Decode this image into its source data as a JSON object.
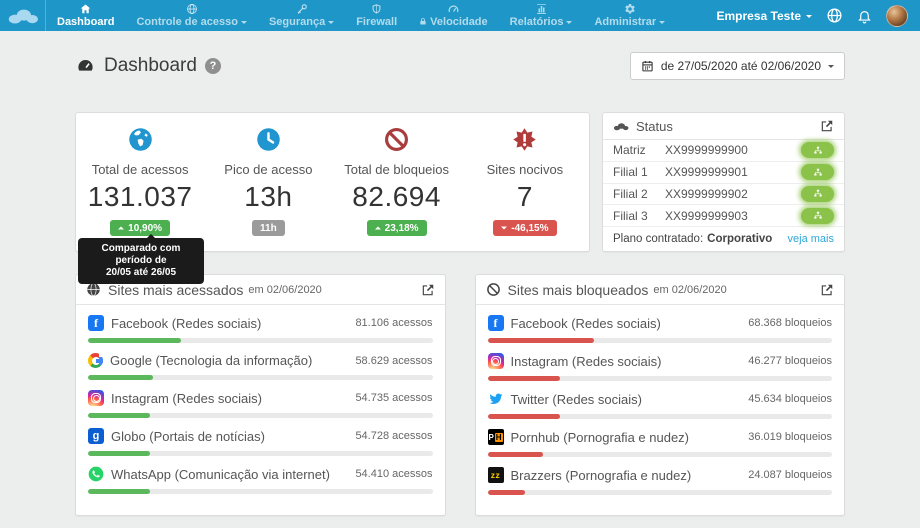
{
  "navbar": {
    "background": "#1e96c8",
    "items": [
      {
        "label": "Dashboard",
        "icon": "home-icon",
        "active": true,
        "caret": false
      },
      {
        "label": "Controle de acesso",
        "icon": "globe-icon",
        "active": false,
        "caret": true
      },
      {
        "label": "Segurança",
        "icon": "key-icon",
        "active": false,
        "caret": true
      },
      {
        "label": "Firewall",
        "icon": "shield-icon",
        "active": false,
        "caret": false
      },
      {
        "label": "Velocidade",
        "icon": "gauge-icon",
        "active": false,
        "caret": false,
        "locked": true
      },
      {
        "label": "Relatórios",
        "icon": "bar-chart-icon",
        "active": false,
        "caret": true
      },
      {
        "label": "Administrar",
        "icon": "gear-icon",
        "active": false,
        "caret": true
      }
    ],
    "company_menu": {
      "label": "Empresa Teste"
    }
  },
  "page_header": {
    "title": "Dashboard",
    "date_filter": "de 27/05/2020 até 02/06/2020"
  },
  "stats": {
    "cards": [
      {
        "label": "Total de acessos",
        "value": "131.037",
        "icon": "globe-americas",
        "badge": {
          "text": "10,90%",
          "trend": "up",
          "color": "#4caf50"
        }
      },
      {
        "label": "Pico de acesso",
        "value": "13h",
        "icon": "clock",
        "badge": {
          "text": "11h",
          "trend": "none",
          "color": "#9b9b9b"
        }
      },
      {
        "label": "Total de bloqueios",
        "value": "82.694",
        "icon": "ban",
        "badge": {
          "text": "23,18%",
          "trend": "up",
          "color": "#4caf50"
        }
      },
      {
        "label": "Sites nocivos",
        "value": "7",
        "icon": "virus",
        "badge": {
          "text": "-46,15%",
          "trend": "down",
          "color": "#d9534f"
        }
      }
    ],
    "tooltip": {
      "line1": "Comparado com período de",
      "line2": "20/05 até 26/05"
    }
  },
  "status_panel": {
    "title": "Status",
    "rows": [
      {
        "name": "Matriz",
        "code": "XX9999999900",
        "status": "online"
      },
      {
        "name": "Filial 1",
        "code": "XX9999999901",
        "status": "online"
      },
      {
        "name": "Filial 2",
        "code": "XX9999999902",
        "status": "online"
      },
      {
        "name": "Filial 3",
        "code": "XX9999999903",
        "status": "online"
      }
    ],
    "plan_label": "Plano contratado:",
    "plan_value": "Corporativo",
    "more_link": "veja mais"
  },
  "top_accessed": {
    "title": "Sites mais acessados",
    "date": "em 02/06/2020",
    "bar_color": "#5cb85c",
    "rows": [
      {
        "site": "Facebook (Redes sociais)",
        "value": "81.106 acessos",
        "pct": 27,
        "icon": "facebook"
      },
      {
        "site": "Google (Tecnologia da informação)",
        "value": "58.629 acessos",
        "pct": 19,
        "icon": "google"
      },
      {
        "site": "Instagram (Redes sociais)",
        "value": "54.735 acessos",
        "pct": 18,
        "icon": "instagram"
      },
      {
        "site": "Globo (Portais de notícias)",
        "value": "54.728 acessos",
        "pct": 18,
        "icon": "globo"
      },
      {
        "site": "WhatsApp (Comunicação via internet)",
        "value": "54.410 acessos",
        "pct": 18,
        "icon": "whatsapp"
      }
    ]
  },
  "top_blocked": {
    "title": "Sites mais bloqueados",
    "date": "em 02/06/2020",
    "bar_color": "#d9534f",
    "rows": [
      {
        "site": "Facebook (Redes sociais)",
        "value": "68.368 bloqueios",
        "pct": 31,
        "icon": "facebook"
      },
      {
        "site": "Instagram (Redes sociais)",
        "value": "46.277 bloqueios",
        "pct": 21,
        "icon": "instagram"
      },
      {
        "site": "Twitter (Redes sociais)",
        "value": "45.634 bloqueios",
        "pct": 21,
        "icon": "twitter"
      },
      {
        "site": "Pornhub (Pornografia e nudez)",
        "value": "36.019 bloqueios",
        "pct": 16,
        "icon": "pornhub"
      },
      {
        "site": "Brazzers (Pornografia e nudez)",
        "value": "24.087 bloqueios",
        "pct": 11,
        "icon": "brazzers"
      }
    ]
  },
  "icon_glyphs": {
    "facebook": "f",
    "globo": "g",
    "pornhub_p": "P",
    "pornhub_h": "H",
    "brazzers": "zz",
    "help": "?"
  }
}
